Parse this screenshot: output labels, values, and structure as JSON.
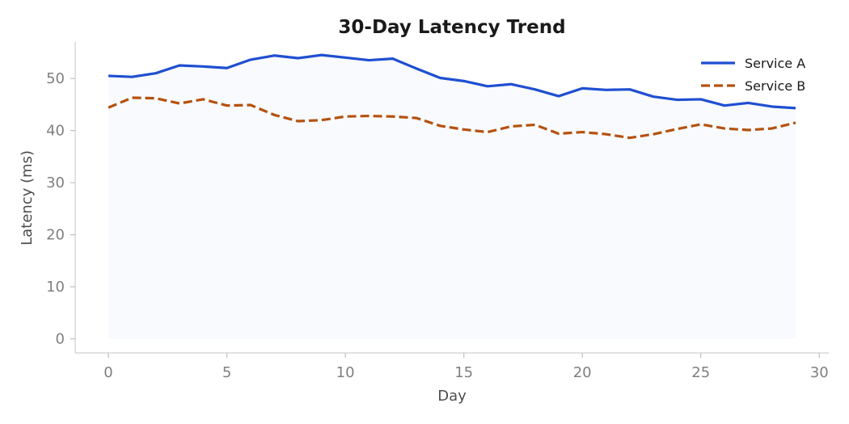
{
  "chart_data": {
    "type": "line",
    "title": "30-Day Latency Trend",
    "xlabel": "Day",
    "ylabel": "Latency (ms)",
    "xlim": [
      -1.4,
      30.4
    ],
    "ylim": [
      -2.7,
      57.0
    ],
    "xticks": [
      0,
      5,
      10,
      15,
      20,
      25,
      30
    ],
    "yticks": [
      0,
      10,
      20,
      30,
      40,
      50
    ],
    "grid": false,
    "legend_position": "top-right",
    "x": [
      0,
      1,
      2,
      3,
      4,
      5,
      6,
      7,
      8,
      9,
      10,
      11,
      12,
      13,
      14,
      15,
      16,
      17,
      18,
      19,
      20,
      21,
      22,
      23,
      24,
      25,
      26,
      27,
      28,
      29
    ],
    "series": [
      {
        "name": "Service A",
        "color": "#1f4fd1",
        "style": "solid",
        "fill_to_zero": true,
        "fill_color": "#f8fafd",
        "values": [
          50.5,
          50.3,
          51.0,
          52.5,
          52.3,
          52.0,
          53.6,
          54.4,
          53.9,
          54.5,
          54.0,
          53.5,
          53.8,
          51.9,
          50.1,
          49.5,
          48.5,
          48.9,
          47.9,
          46.6,
          48.1,
          47.8,
          47.9,
          46.5,
          45.9,
          46.0,
          44.8,
          45.3,
          44.6,
          44.3
        ]
      },
      {
        "name": "Service B",
        "color": "#b5510e",
        "style": "dashed",
        "values": [
          44.4,
          46.3,
          46.2,
          45.2,
          46.0,
          44.8,
          44.9,
          43.0,
          41.8,
          42.0,
          42.7,
          42.8,
          42.7,
          42.4,
          40.9,
          40.2,
          39.7,
          40.8,
          41.1,
          39.4,
          39.7,
          39.3,
          38.6,
          39.3,
          40.3,
          41.2,
          40.4,
          40.1,
          40.4,
          41.5
        ]
      }
    ]
  }
}
